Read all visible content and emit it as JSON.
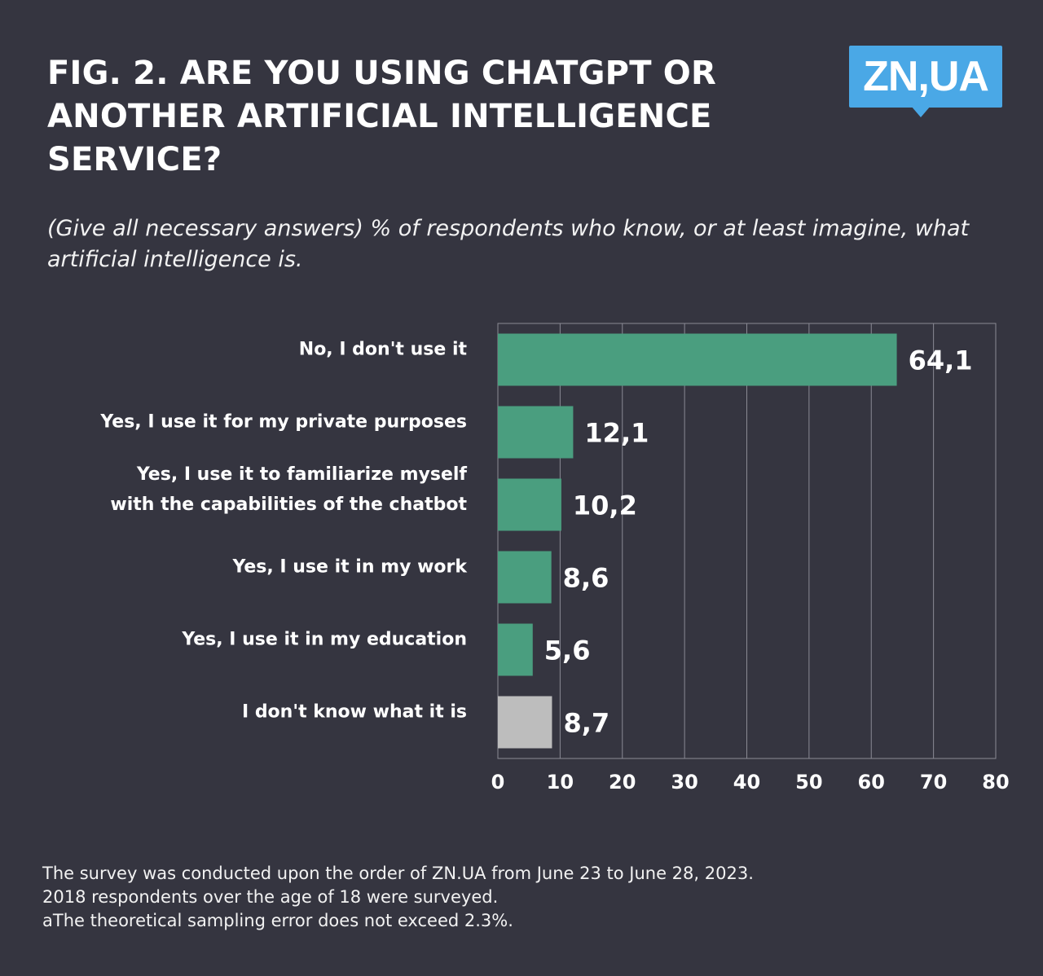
{
  "header": {
    "title": "Fig. 2. ARE YOU USING CHATGPT OR ANOTHER ARTIFICIAL INTELLIGENCE SERVICE?",
    "subtitle": "(Give all necessary answers) % of respondents who know, or at least imagine, what artificial intelligence is."
  },
  "logo": {
    "text": "ZN,UA",
    "color": "#4aa8e6"
  },
  "colors": {
    "bar": "#4a9e7f",
    "bar_unknown": "#bdbdbd",
    "grid": "#8a8a94",
    "background": "#353540"
  },
  "chart_data": {
    "type": "bar",
    "orientation": "horizontal",
    "categories": [
      [
        "No, I don't use it"
      ],
      [
        "Yes, I use it for my private purposes"
      ],
      [
        "Yes, I use it to familiarize myself",
        "with the capabilities of the chatbot"
      ],
      [
        "Yes, I use it in my work"
      ],
      [
        "Yes, I use it in my education"
      ],
      [
        "I don't know what it is"
      ]
    ],
    "values": [
      64.1,
      12.1,
      10.2,
      8.6,
      5.6,
      8.7
    ],
    "value_labels": [
      "64,1",
      "12,1",
      "10,2",
      "8,6",
      "5,6",
      "8,7"
    ],
    "xlim": [
      0,
      80
    ],
    "xticks": [
      "0",
      "10",
      "20",
      "30",
      "40",
      "50",
      "60",
      "70",
      "80"
    ],
    "grid": true,
    "xlabel": "",
    "ylabel": ""
  },
  "footer": {
    "lines": [
      "The survey was conducted upon the order of ZN.UA from June 23 to June 28, 2023.",
      "2018 respondents over the age of 18 were surveyed.",
      "aThe theoretical sampling error does not exceed 2.3%."
    ]
  }
}
